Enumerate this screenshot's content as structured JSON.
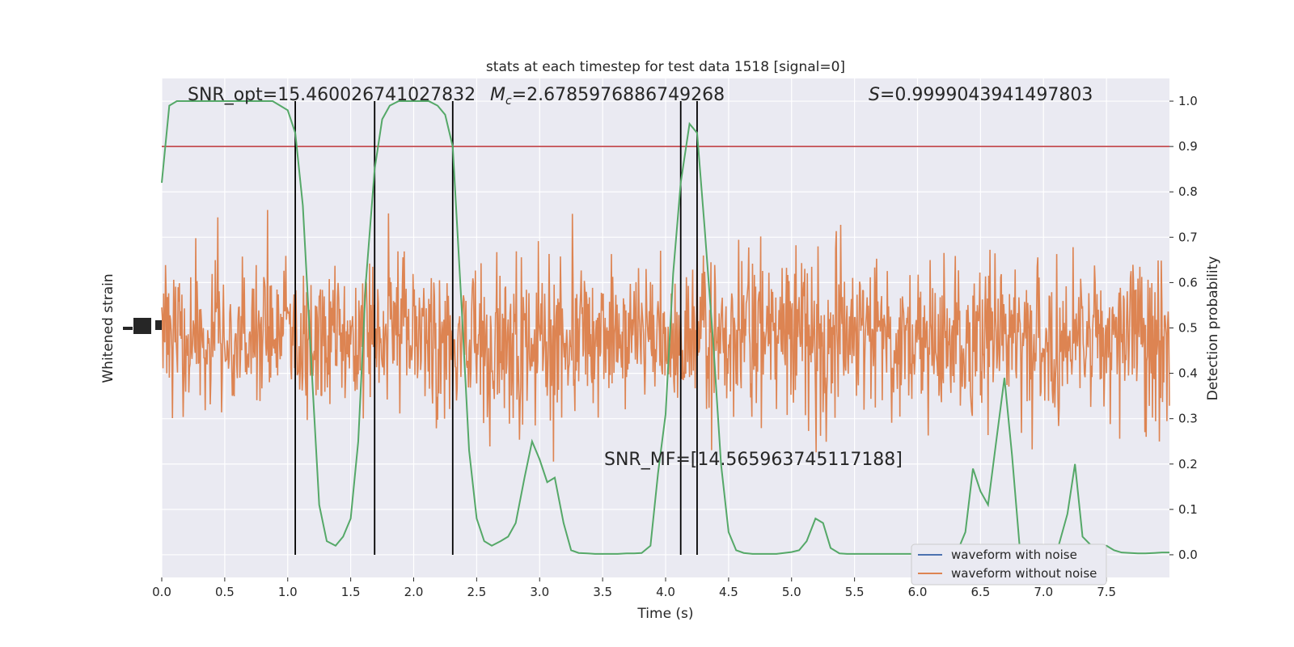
{
  "chart_data": {
    "type": "line",
    "title": "stats at each timestep for test data 1518 [signal=0]",
    "xlabel": "Time (s)",
    "ylabel_left": "Whitened strain",
    "ylabel_right": "Detection probability",
    "xlim": [
      0.0,
      8.0
    ],
    "ylim_right": [
      -0.05,
      1.05
    ],
    "x_ticks": [
      "0.0",
      "0.5",
      "1.0",
      "1.5",
      "2.0",
      "2.5",
      "3.0",
      "3.5",
      "4.0",
      "4.5",
      "5.0",
      "5.5",
      "6.0",
      "6.5",
      "7.0",
      "7.5"
    ],
    "y_ticks_right": [
      "0.0",
      "0.1",
      "0.2",
      "0.3",
      "0.4",
      "0.5",
      "0.6",
      "0.7",
      "0.8",
      "0.9",
      "1.0"
    ],
    "grid": true,
    "legend_position": "lower right",
    "annotations": {
      "snr_opt": "SNR_opt=15.460026741027832",
      "mc_symbol": "M",
      "mc_subscript": "c",
      "mc_value": "=2.6785976886749268",
      "s_symbol": "S",
      "s_value": "=0.9999043941497803",
      "snr_mf": "SNR_MF=[14.565963745117188]"
    },
    "threshold": 0.9,
    "vertical_lines": [
      1.06,
      1.69,
      2.31,
      4.12,
      4.25
    ],
    "series": [
      {
        "name": "waveform with noise",
        "color": "#4c72b0"
      },
      {
        "name": "waveform without noise",
        "color": "#dd8452"
      },
      {
        "color": "#55a868",
        "x": [
          0.0,
          0.06,
          0.12,
          0.19,
          0.25,
          0.31,
          0.38,
          0.44,
          0.5,
          0.56,
          0.62,
          0.69,
          0.75,
          0.81,
          0.88,
          0.94,
          1.0,
          1.06,
          1.12,
          1.19,
          1.25,
          1.31,
          1.38,
          1.44,
          1.5,
          1.56,
          1.62,
          1.69,
          1.75,
          1.81,
          1.88,
          1.94,
          2.0,
          2.06,
          2.12,
          2.19,
          2.25,
          2.31,
          2.38,
          2.44,
          2.5,
          2.56,
          2.62,
          2.69,
          2.75,
          2.81,
          2.88,
          2.94,
          3.0,
          3.06,
          3.12,
          3.19,
          3.25,
          3.31,
          3.38,
          3.44,
          3.5,
          3.56,
          3.62,
          3.69,
          3.75,
          3.81,
          3.88,
          3.94,
          4.0,
          4.06,
          4.12,
          4.19,
          4.25,
          4.31,
          4.38,
          4.44,
          4.5,
          4.56,
          4.62,
          4.69,
          4.75,
          4.81,
          4.88,
          4.94,
          5.0,
          5.06,
          5.12,
          5.19,
          5.25,
          5.31,
          5.38,
          5.44,
          5.5,
          5.56,
          5.62,
          5.69,
          5.75,
          5.81,
          5.88,
          5.94,
          6.0,
          6.06,
          6.12,
          6.19,
          6.25,
          6.31,
          6.38,
          6.44,
          6.5,
          6.56,
          6.62,
          6.69,
          6.75,
          6.81,
          6.88,
          6.94,
          7.0,
          7.06,
          7.12,
          7.19,
          7.25,
          7.31,
          7.38,
          7.44,
          7.5,
          7.56,
          7.62,
          7.69,
          7.75,
          7.81,
          7.88,
          7.94,
          8.0
        ],
        "y": [
          0.82,
          0.99,
          1.0,
          1.0,
          1.0,
          1.0,
          1.0,
          1.0,
          1.0,
          1.0,
          1.0,
          1.0,
          1.0,
          1.0,
          1.0,
          0.99,
          0.98,
          0.93,
          0.77,
          0.41,
          0.11,
          0.03,
          0.02,
          0.04,
          0.08,
          0.25,
          0.6,
          0.85,
          0.96,
          0.99,
          1.0,
          1.0,
          1.0,
          1.0,
          1.0,
          0.99,
          0.97,
          0.9,
          0.55,
          0.23,
          0.08,
          0.03,
          0.02,
          0.03,
          0.04,
          0.07,
          0.17,
          0.25,
          0.21,
          0.16,
          0.17,
          0.07,
          0.01,
          0.004,
          0.003,
          0.002,
          0.002,
          0.002,
          0.002,
          0.003,
          0.003,
          0.004,
          0.02,
          0.18,
          0.31,
          0.62,
          0.82,
          0.95,
          0.93,
          0.72,
          0.46,
          0.2,
          0.05,
          0.01,
          0.004,
          0.002,
          0.002,
          0.002,
          0.002,
          0.004,
          0.006,
          0.01,
          0.03,
          0.08,
          0.07,
          0.015,
          0.003,
          0.002,
          0.002,
          0.002,
          0.002,
          0.002,
          0.002,
          0.002,
          0.002,
          0.002,
          0.002,
          0.002,
          0.002,
          0.002,
          0.002,
          0.003,
          0.05,
          0.19,
          0.14,
          0.11,
          0.24,
          0.39,
          0.22,
          0.02,
          0.005,
          0.004,
          0.003,
          0.005,
          0.02,
          0.09,
          0.2,
          0.04,
          0.02,
          0.015,
          0.02,
          0.01,
          0.005,
          0.004,
          0.003,
          0.003,
          0.004,
          0.005,
          0.005
        ]
      }
    ]
  }
}
